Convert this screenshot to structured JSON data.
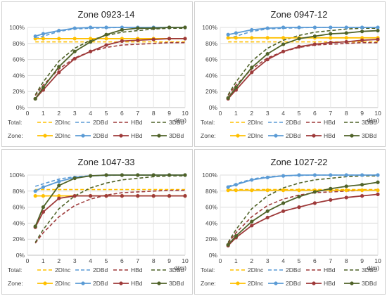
{
  "chart_data": [
    {
      "type": "line",
      "title": "Zone 0923-14",
      "xlabel": "d(m)",
      "x": [
        0.5,
        1,
        2,
        3,
        4,
        5,
        6,
        7,
        8,
        9,
        10
      ],
      "xticks": [
        0,
        1,
        2,
        3,
        4,
        5,
        6,
        7,
        8,
        9,
        10
      ],
      "yticks": [
        "0%",
        "20%",
        "40%",
        "60%",
        "80%",
        "100%"
      ],
      "ylim": [
        0,
        100
      ],
      "grid": true,
      "legend": {
        "position": "bottom",
        "rows": [
          {
            "label": "Total:",
            "entries": [
              "2DInc",
              "2DBd",
              "HBd",
              "3DBd"
            ]
          },
          {
            "label": "Zone:",
            "entries": [
              "2DInc",
              "2DBd",
              "HBd",
              "3DBd"
            ]
          }
        ]
      },
      "colors": {
        "2DInc": "#ffc000",
        "2DBd": "#5b9bd5",
        "HBd": "#9e3a3a",
        "3DBd": "#4f6228"
      },
      "total": {
        "2DInc": [
          82,
          82,
          82,
          82,
          82,
          82,
          82,
          82,
          82,
          82,
          82
        ],
        "2DBd": [
          86,
          89,
          95,
          98,
          99,
          99.5,
          100,
          100,
          100,
          100,
          100
        ],
        "HBd": [
          15,
          28,
          48,
          62,
          70,
          75,
          78,
          79,
          80,
          81,
          81
        ],
        "3DBd": [
          16,
          32,
          58,
          74,
          84,
          90,
          94,
          96,
          98,
          99,
          99
        ]
      },
      "zone": {
        "2DInc": [
          86,
          86,
          86,
          86,
          86,
          86,
          86,
          86,
          86,
          86,
          86
        ],
        "2DBd": [
          89,
          92,
          96,
          99,
          100,
          100,
          100,
          100,
          100,
          100,
          100
        ],
        "HBd": [
          11,
          22,
          44,
          61,
          70,
          78,
          83,
          84,
          85,
          86,
          86
        ],
        "3DBd": [
          11,
          25,
          51,
          70,
          82,
          91,
          97,
          99,
          99,
          100,
          100
        ]
      }
    },
    {
      "type": "line",
      "title": "Zone 0947-12",
      "xlabel": "d(m)",
      "x": [
        0.5,
        1,
        2,
        3,
        4,
        5,
        6,
        7,
        8,
        9,
        10
      ],
      "xticks": [
        0,
        1,
        2,
        3,
        4,
        5,
        6,
        7,
        8,
        9,
        10
      ],
      "yticks": [
        "0%",
        "20%",
        "40%",
        "60%",
        "80%",
        "100%"
      ],
      "ylim": [
        0,
        100
      ],
      "grid": true,
      "legend": {
        "position": "bottom",
        "rows": [
          {
            "label": "Total:",
            "entries": [
              "2DInc",
              "2DBd",
              "HBd",
              "3DBd"
            ]
          },
          {
            "label": "Zone:",
            "entries": [
              "2DInc",
              "2DBd",
              "HBd",
              "3DBd"
            ]
          }
        ]
      },
      "colors": {
        "2DInc": "#ffc000",
        "2DBd": "#5b9bd5",
        "HBd": "#9e3a3a",
        "3DBd": "#4f6228"
      },
      "total": {
        "2DInc": [
          82,
          82,
          82,
          82,
          82,
          82,
          82,
          82,
          82,
          82,
          82
        ],
        "2DBd": [
          86,
          89,
          95,
          98,
          99,
          99.5,
          100,
          100,
          100,
          100,
          100
        ],
        "HBd": [
          15,
          28,
          48,
          62,
          70,
          75,
          78,
          79,
          80,
          81,
          81
        ],
        "3DBd": [
          16,
          32,
          58,
          74,
          84,
          90,
          94,
          96,
          98,
          99,
          99
        ]
      },
      "zone": {
        "2DInc": [
          87,
          87,
          87,
          87,
          87,
          87,
          87,
          87,
          87,
          87,
          87
        ],
        "2DBd": [
          91,
          93,
          97,
          99,
          100,
          100,
          100,
          100,
          100,
          100,
          100
        ],
        "HBd": [
          11,
          22,
          44,
          60,
          70,
          76,
          79,
          81,
          82,
          84,
          85
        ],
        "3DBd": [
          12,
          25,
          50,
          67,
          79,
          86,
          89,
          92,
          93,
          95,
          96
        ]
      }
    },
    {
      "type": "line",
      "title": "Zone 1047-33",
      "xlabel": "d(m)",
      "x": [
        0.5,
        1,
        2,
        3,
        4,
        5,
        6,
        7,
        8,
        9,
        10
      ],
      "xticks": [
        0,
        1,
        2,
        3,
        4,
        5,
        6,
        7,
        8,
        9,
        10
      ],
      "yticks": [
        "0%",
        "20%",
        "40%",
        "60%",
        "80%",
        "100%"
      ],
      "ylim": [
        0,
        100
      ],
      "grid": true,
      "legend": {
        "position": "bottom",
        "rows": [
          {
            "label": "Total:",
            "entries": [
              "2DInc",
              "2DBd",
              "HBd",
              "3DBd"
            ]
          },
          {
            "label": "Zone:",
            "entries": [
              "2DInc",
              "2DBd",
              "HBd",
              "3DBd"
            ]
          }
        ]
      },
      "colors": {
        "2DInc": "#ffc000",
        "2DBd": "#5b9bd5",
        "HBd": "#9e3a3a",
        "3DBd": "#4f6228"
      },
      "total": {
        "2DInc": [
          82,
          82,
          82,
          82,
          82,
          82,
          82,
          82,
          82,
          82,
          82
        ],
        "2DBd": [
          86,
          89,
          95,
          98,
          99,
          99.5,
          100,
          100,
          100,
          100,
          100
        ],
        "HBd": [
          15,
          28,
          48,
          62,
          70,
          75,
          78,
          79,
          80,
          81,
          81
        ],
        "3DBd": [
          16,
          32,
          58,
          74,
          84,
          90,
          94,
          96,
          98,
          99,
          99
        ]
      },
      "zone": {
        "2DInc": [
          74,
          74,
          74,
          74,
          74,
          74,
          74,
          74,
          74,
          74,
          74
        ],
        "2DBd": [
          80,
          85,
          92,
          97,
          99,
          100,
          100,
          100,
          100,
          100,
          100
        ],
        "HBd": [
          35,
          54,
          71,
          74,
          74,
          74,
          74,
          74,
          74,
          74,
          74
        ],
        "3DBd": [
          36,
          60,
          87,
          96,
          99,
          100,
          100,
          100,
          100,
          100,
          100
        ]
      }
    },
    {
      "type": "line",
      "title": "Zone 1027-22",
      "xlabel": "d(m)",
      "x": [
        0.5,
        1,
        2,
        3,
        4,
        5,
        6,
        7,
        8,
        9,
        10
      ],
      "xticks": [
        0,
        1,
        2,
        3,
        4,
        5,
        6,
        7,
        8,
        9,
        10
      ],
      "yticks": [
        "0%",
        "20%",
        "40%",
        "60%",
        "80%",
        "100%"
      ],
      "ylim": [
        0,
        100
      ],
      "grid": true,
      "legend": {
        "position": "bottom",
        "rows": [
          {
            "label": "Total:",
            "entries": [
              "2DInc",
              "2DBd",
              "HBd",
              "3DBd"
            ]
          },
          {
            "label": "Zone:",
            "entries": [
              "2DInc",
              "2DBd",
              "HBd",
              "3DBd"
            ]
          }
        ]
      },
      "colors": {
        "2DInc": "#ffc000",
        "2DBd": "#5b9bd5",
        "HBd": "#9e3a3a",
        "3DBd": "#4f6228"
      },
      "total": {
        "2DInc": [
          82,
          82,
          82,
          82,
          82,
          82,
          82,
          82,
          82,
          82,
          82
        ],
        "2DBd": [
          86,
          89,
          95,
          98,
          99,
          99.5,
          100,
          100,
          100,
          100,
          100
        ],
        "HBd": [
          15,
          28,
          48,
          62,
          70,
          75,
          78,
          79,
          80,
          81,
          81
        ],
        "3DBd": [
          16,
          32,
          58,
          74,
          84,
          90,
          94,
          96,
          98,
          99,
          99
        ]
      },
      "zone": {
        "2DInc": [
          81,
          81,
          81,
          81,
          81,
          81,
          81,
          81,
          81,
          81,
          81
        ],
        "2DBd": [
          85,
          88,
          94,
          97,
          99,
          100,
          100,
          100,
          100,
          100,
          100
        ],
        "HBd": [
          12,
          22,
          37,
          47,
          55,
          60,
          65,
          69,
          72,
          74,
          76
        ],
        "3DBd": [
          13,
          24,
          42,
          55,
          65,
          73,
          79,
          83,
          86,
          88,
          91
        ]
      }
    }
  ]
}
